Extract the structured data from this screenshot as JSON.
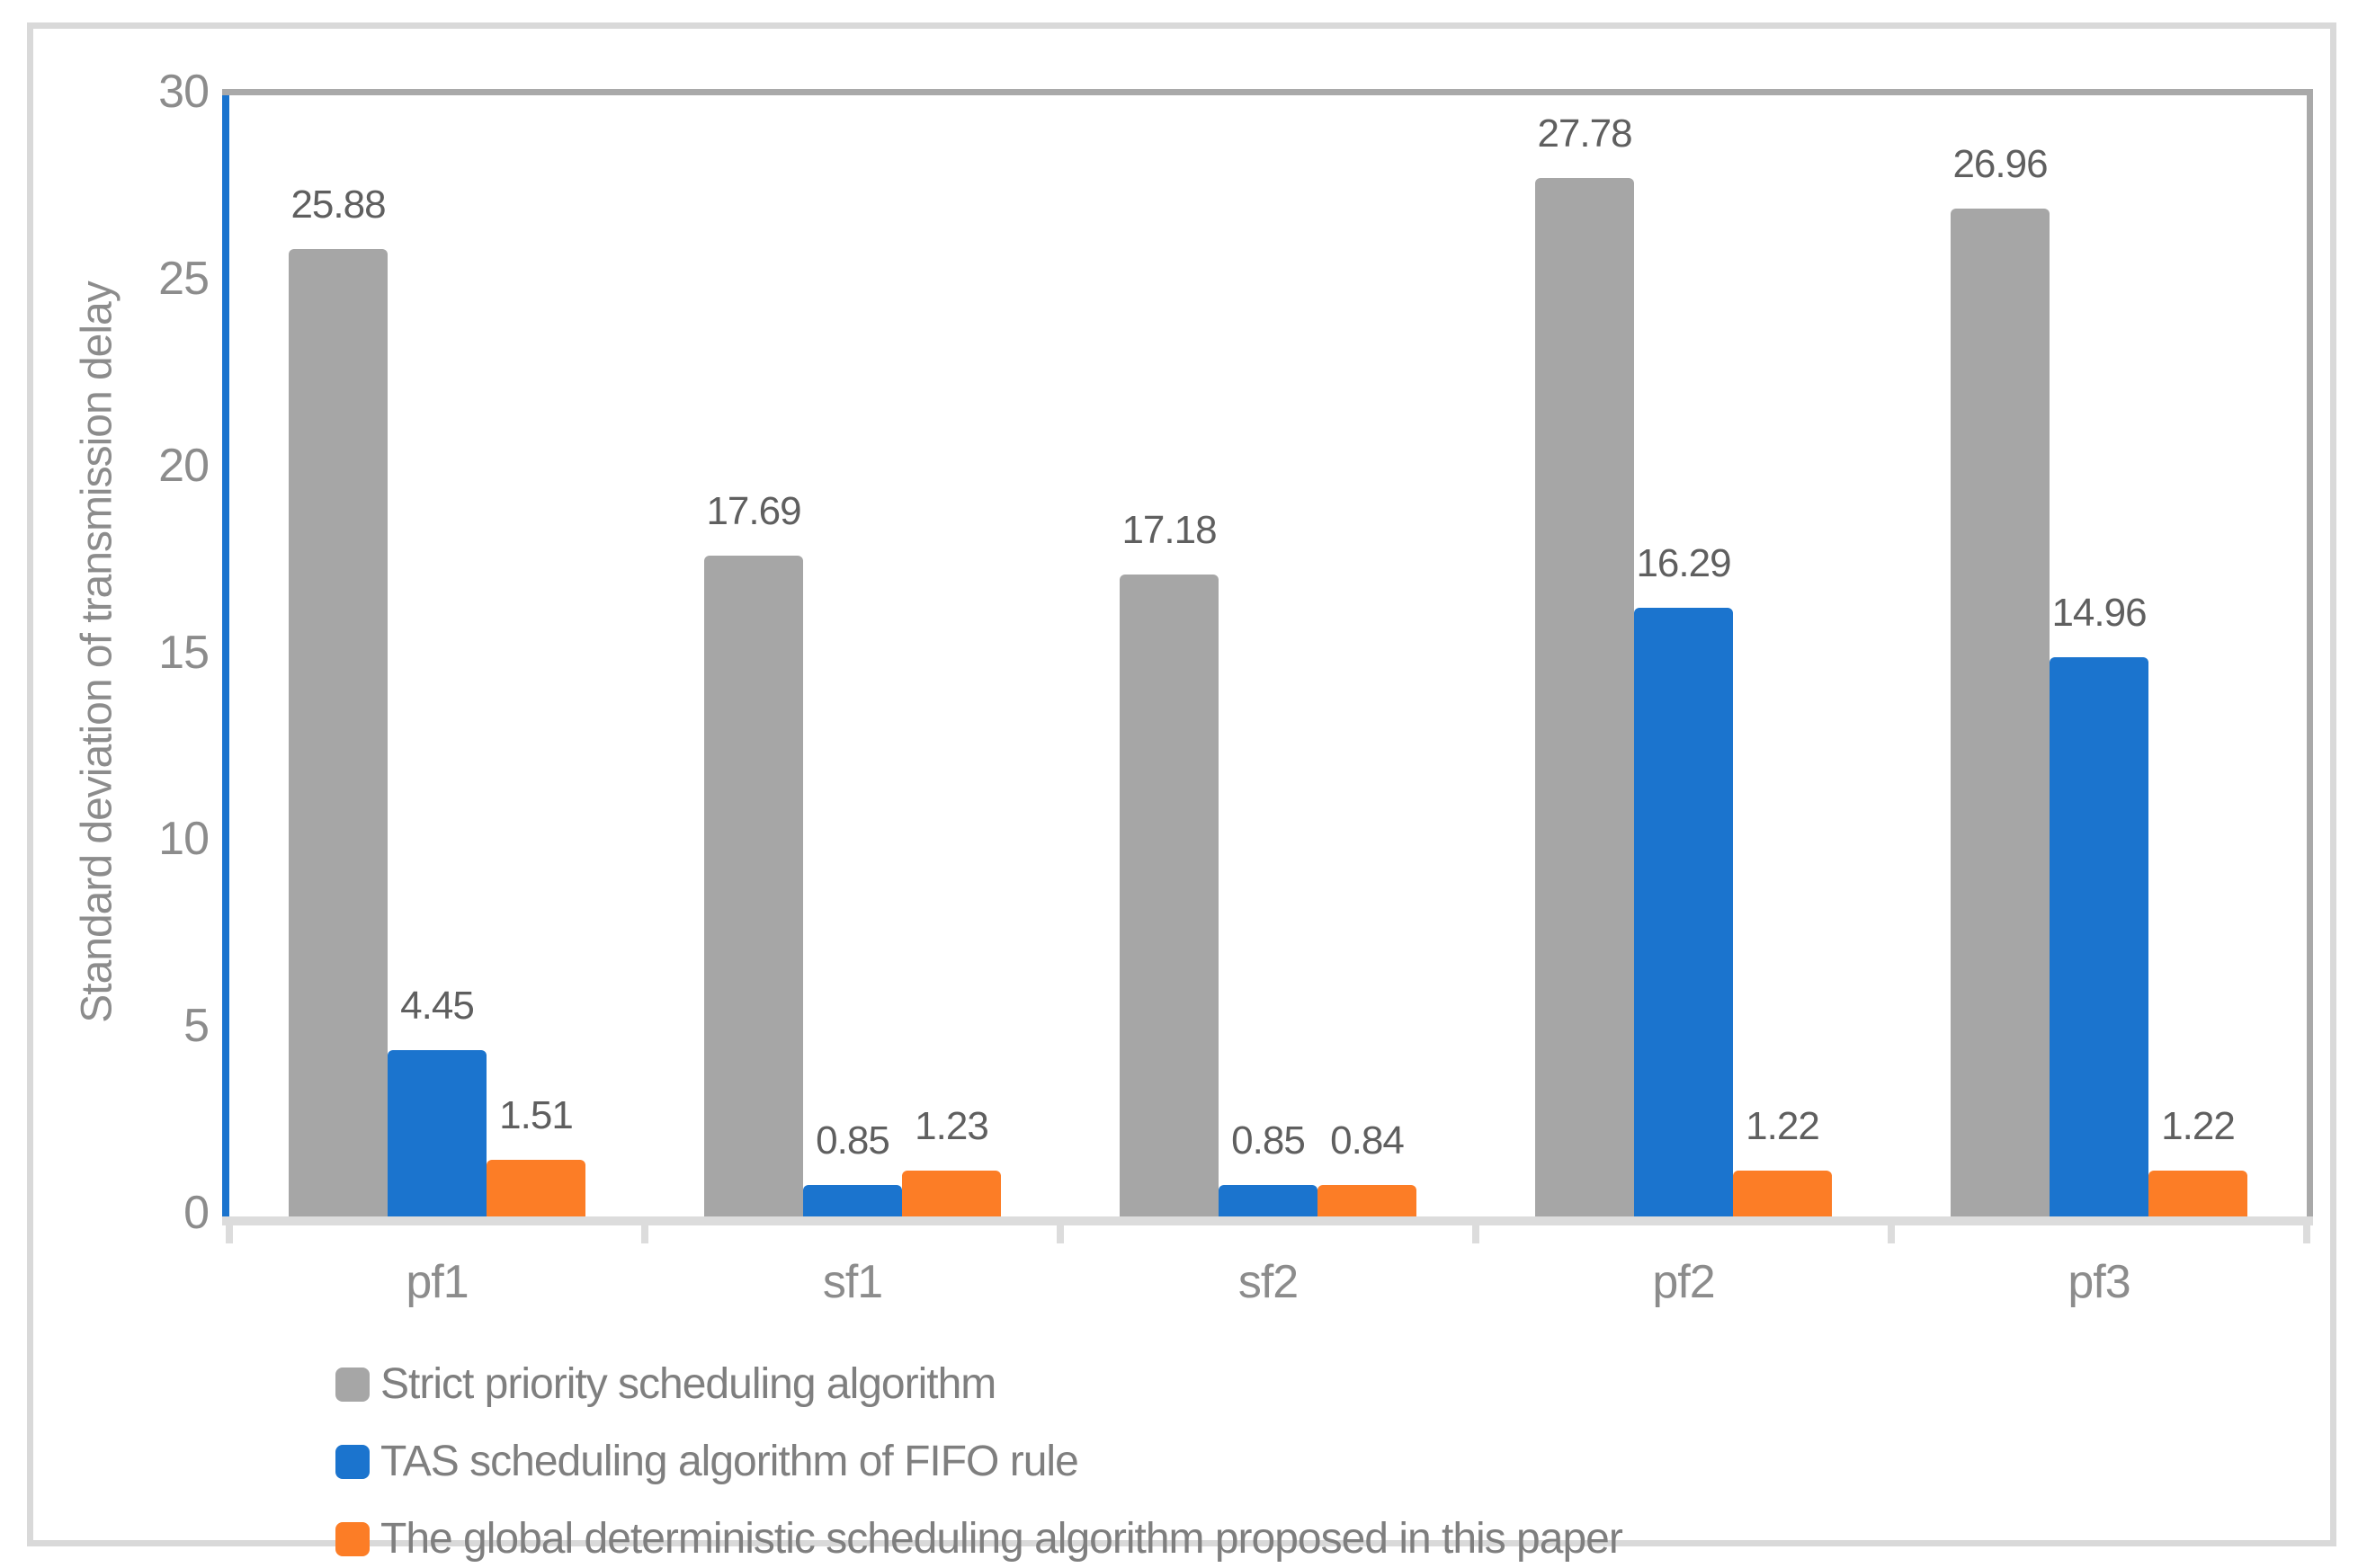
{
  "chart_data": {
    "type": "bar",
    "title": "",
    "xlabel": "",
    "ylabel": "Standard deviation of transmission delay",
    "categories": [
      "pf1",
      "sf1",
      "sf2",
      "pf2",
      "pf3"
    ],
    "series": [
      {
        "name": "Strict priority scheduling algorithm",
        "color": "#A6A6A6",
        "values": [
          25.88,
          17.69,
          17.18,
          27.78,
          26.96
        ]
      },
      {
        "name": "TAS scheduling algorithm of FIFO rule",
        "color": "#1B74CE",
        "values": [
          4.45,
          0.85,
          0.85,
          16.29,
          14.96
        ]
      },
      {
        "name": "The global deterministic scheduling algorithm proposed in this paper",
        "color": "#FC7D26",
        "values": [
          1.51,
          1.23,
          0.84,
          1.22,
          1.22
        ]
      }
    ],
    "ylim": [
      0,
      30
    ],
    "yticks": [
      0,
      5,
      10,
      15,
      20,
      25,
      30
    ],
    "grid": false,
    "value_labels": true,
    "value_label_decimals": 2,
    "legend_position": "bottom-left",
    "colors": {
      "axis_line": "#1B74CE",
      "plot_border": "#A9A9A9",
      "baseline": "#DCDCDC",
      "frame_border": "#D9D9D9",
      "tick_text": "#8C8C8C",
      "value_text": "#5F5F5F",
      "legend_text": "#7F7F7F"
    }
  }
}
